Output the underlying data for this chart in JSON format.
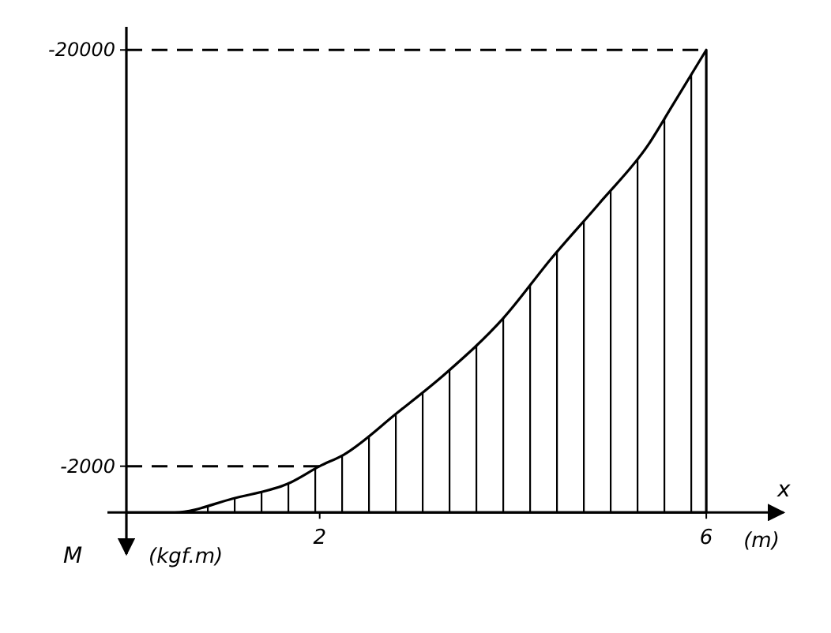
{
  "chart_data": {
    "type": "area",
    "xlabel": "x",
    "ylabel": "M",
    "annotations": [
      "(m)",
      "(kgf.m)"
    ],
    "x": [
      0,
      0.5,
      1.1,
      1.7,
      2,
      2.25,
      2.8,
      3.3,
      3.9,
      4.4,
      4.9,
      5.4,
      5.65,
      6
    ],
    "series": [
      {
        "color": "#000000",
        "values": [
          0,
          0,
          -600,
          -1300,
          -2000,
          -2500,
          -4300,
          -6000,
          -8400,
          -11000,
          -13400,
          -15900,
          -17600,
          -20000
        ]
      }
    ],
    "xlim": [
      0,
      6.8
    ],
    "xticks": [
      2,
      6
    ],
    "ylim": [
      1800,
      -21000
    ],
    "yticks": [
      -2000,
      -20000
    ],
    "ref_lines": [
      {
        "axis": "y",
        "value": -2000,
        "line_style": "dashed"
      },
      {
        "axis": "y",
        "value": -20000,
        "line_style": "dashed"
      }
    ],
    "grid": false
  }
}
